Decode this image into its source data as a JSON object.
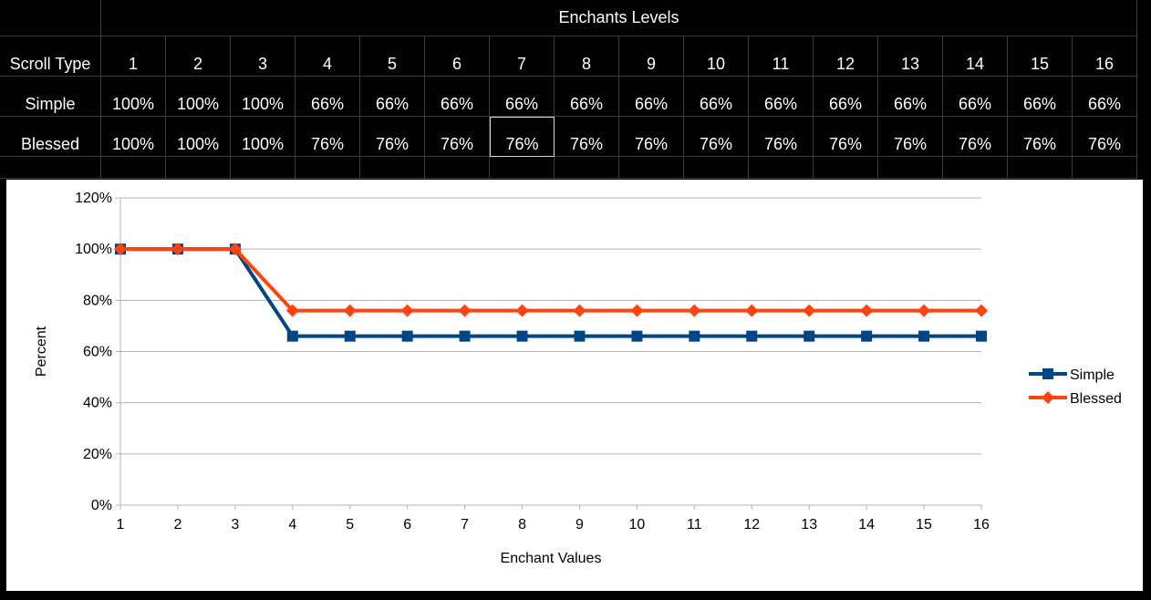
{
  "sheet": {
    "header_title": "Enchants Levels",
    "row_header_label": "Scroll Type",
    "levels": [
      "1",
      "2",
      "3",
      "4",
      "5",
      "6",
      "7",
      "8",
      "9",
      "10",
      "11",
      "12",
      "13",
      "14",
      "15",
      "16"
    ],
    "rows": [
      {
        "label": "Simple",
        "values": [
          "100%",
          "100%",
          "100%",
          "66%",
          "66%",
          "66%",
          "66%",
          "66%",
          "66%",
          "66%",
          "66%",
          "66%",
          "66%",
          "66%",
          "66%",
          "66%"
        ]
      },
      {
        "label": "Blessed",
        "values": [
          "100%",
          "100%",
          "100%",
          "76%",
          "76%",
          "76%",
          "76%",
          "76%",
          "76%",
          "76%",
          "76%",
          "76%",
          "76%",
          "76%",
          "76%",
          "76%"
        ]
      }
    ]
  },
  "chart_data": {
    "type": "line",
    "title": "",
    "xlabel": "Enchant Values",
    "ylabel": "Percent",
    "x": [
      1,
      2,
      3,
      4,
      5,
      6,
      7,
      8,
      9,
      10,
      11,
      12,
      13,
      14,
      15,
      16
    ],
    "x_tick_labels": [
      "1",
      "2",
      "3",
      "4",
      "5",
      "6",
      "7",
      "8",
      "9",
      "10",
      "11",
      "12",
      "13",
      "14",
      "15",
      "16"
    ],
    "ylim": [
      0,
      120
    ],
    "y_ticks": [
      0,
      20,
      40,
      60,
      80,
      100,
      120
    ],
    "y_tick_labels": [
      "0%",
      "20%",
      "40%",
      "60%",
      "80%",
      "100%",
      "120%"
    ],
    "grid": true,
    "legend_position": "right",
    "series": [
      {
        "name": "Simple",
        "color": "#004586",
        "marker": "square",
        "values": [
          100,
          100,
          100,
          66,
          66,
          66,
          66,
          66,
          66,
          66,
          66,
          66,
          66,
          66,
          66,
          66
        ]
      },
      {
        "name": "Blessed",
        "color": "#ff420e",
        "marker": "diamond",
        "values": [
          100,
          100,
          100,
          76,
          76,
          76,
          76,
          76,
          76,
          76,
          76,
          76,
          76,
          76,
          76,
          76
        ]
      }
    ]
  }
}
